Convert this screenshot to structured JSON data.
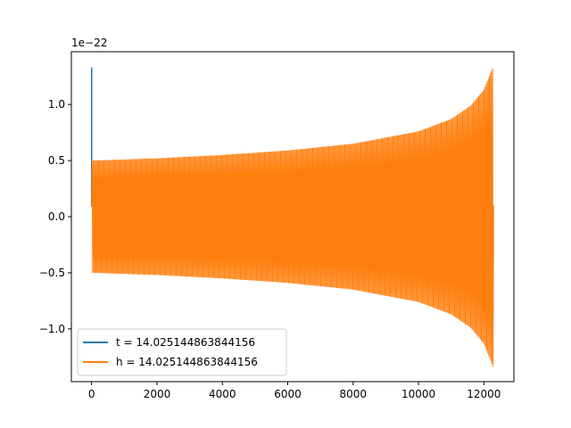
{
  "chart_data": {
    "type": "line",
    "title": "",
    "xlabel": "",
    "ylabel": "",
    "y_offset_label": "1e−22",
    "xlim": [
      -620,
      12920
    ],
    "ylim": [
      -1.47,
      1.47
    ],
    "x_ticks": [
      {
        "value": 0,
        "label": "0"
      },
      {
        "value": 2000,
        "label": "2000"
      },
      {
        "value": 4000,
        "label": "4000"
      },
      {
        "value": 6000,
        "label": "6000"
      },
      {
        "value": 8000,
        "label": "8000"
      },
      {
        "value": 10000,
        "label": "10000"
      },
      {
        "value": 12000,
        "label": "12000"
      }
    ],
    "y_ticks": [
      {
        "value": -1.0,
        "label": "−1.0"
      },
      {
        "value": -0.5,
        "label": "−0.5"
      },
      {
        "value": 0.0,
        "label": "0.0"
      },
      {
        "value": 0.5,
        "label": "0.5"
      },
      {
        "value": 1.0,
        "label": "1.0"
      }
    ],
    "grid": false,
    "legend_position": "lower-left",
    "series": [
      {
        "name": "t = 14.025144863844156",
        "color": "#1f77b4",
        "x": [
          0,
          0,
          0,
          0
        ],
        "y": [
          0.09,
          1.33,
          0.09,
          0.5
        ]
      },
      {
        "name": "h = 14.025144863844156",
        "color": "#ff7f0e",
        "envelope_x": [
          0,
          2000,
          4000,
          6000,
          8000,
          10000,
          11000,
          11600,
          12000,
          12300
        ],
        "envelope_amp": [
          0.5,
          0.52,
          0.55,
          0.59,
          0.65,
          0.76,
          0.87,
          0.99,
          1.13,
          1.35
        ],
        "end_x": 12300
      }
    ]
  }
}
